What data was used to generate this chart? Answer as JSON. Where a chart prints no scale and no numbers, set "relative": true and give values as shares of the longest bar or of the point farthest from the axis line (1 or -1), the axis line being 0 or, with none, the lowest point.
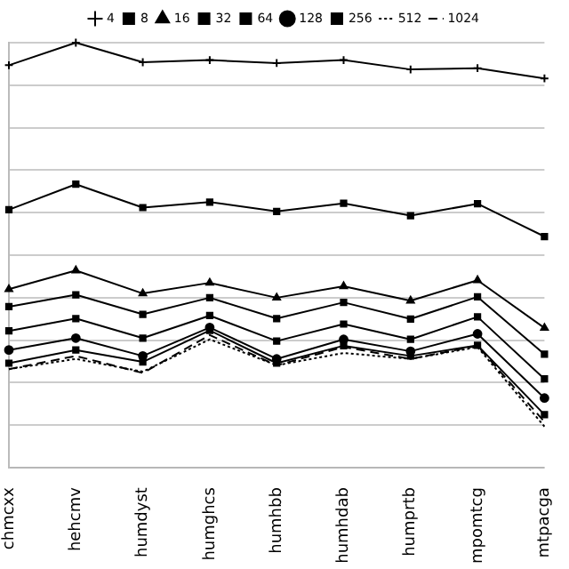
{
  "chart_data": {
    "type": "line",
    "relative": true,
    "grid": "y",
    "legend": "top",
    "categories": [
      "chmcxx",
      "hehcmv",
      "humdyst",
      "humghcs",
      "humhbb",
      "humhdab",
      "humprtb",
      "mpomtcg",
      "mtpacga"
    ],
    "series": [
      {
        "name": "4",
        "color": "#000000",
        "marker": "cross",
        "line_style": "solid",
        "values": [
          0.947,
          1,
          0.954,
          0.959,
          0.952,
          0.959,
          0.937,
          0.94,
          0.916
        ]
      },
      {
        "name": "8",
        "color": "#000000",
        "marker": "square",
        "line_style": "solid",
        "values": [
          0.607,
          0.667,
          0.612,
          0.625,
          0.603,
          0.622,
          0.593,
          0.621,
          0.544
        ]
      },
      {
        "name": "16",
        "color": "#000000",
        "marker": "triangle",
        "line_style": "solid",
        "values": [
          0.42,
          0.464,
          0.41,
          0.435,
          0.4,
          0.427,
          0.393,
          0.441,
          0.329
        ]
      },
      {
        "name": "32",
        "color": "#000000",
        "marker": "square",
        "line_style": "solid",
        "values": [
          0.379,
          0.407,
          0.361,
          0.4,
          0.351,
          0.389,
          0.35,
          0.402,
          0.267
        ]
      },
      {
        "name": "64",
        "color": "#000000",
        "marker": "square",
        "line_style": "solid",
        "values": [
          0.322,
          0.351,
          0.305,
          0.358,
          0.298,
          0.338,
          0.302,
          0.355,
          0.209
        ]
      },
      {
        "name": "128",
        "color": "#000000",
        "marker": "circle",
        "line_style": "solid",
        "values": [
          0.277,
          0.305,
          0.263,
          0.33,
          0.256,
          0.302,
          0.274,
          0.315,
          0.164
        ]
      },
      {
        "name": "256",
        "color": "#000000",
        "marker": "square",
        "line_style": "solid",
        "values": [
          0.246,
          0.277,
          0.249,
          0.323,
          0.246,
          0.287,
          0.263,
          0.288,
          0.125
        ]
      },
      {
        "name": "512",
        "color": "#000000",
        "marker": "none",
        "line_style": "dotted",
        "values": [
          0.232,
          0.256,
          0.226,
          0.302,
          0.241,
          0.27,
          0.256,
          0.284,
          0.097
        ]
      },
      {
        "name": "1024",
        "color": "#000000",
        "marker": "none",
        "line_style": "dashed",
        "values": [
          0.232,
          0.263,
          0.223,
          0.312,
          0.241,
          0.284,
          0.256,
          0.287,
          0.108
        ]
      }
    ]
  }
}
